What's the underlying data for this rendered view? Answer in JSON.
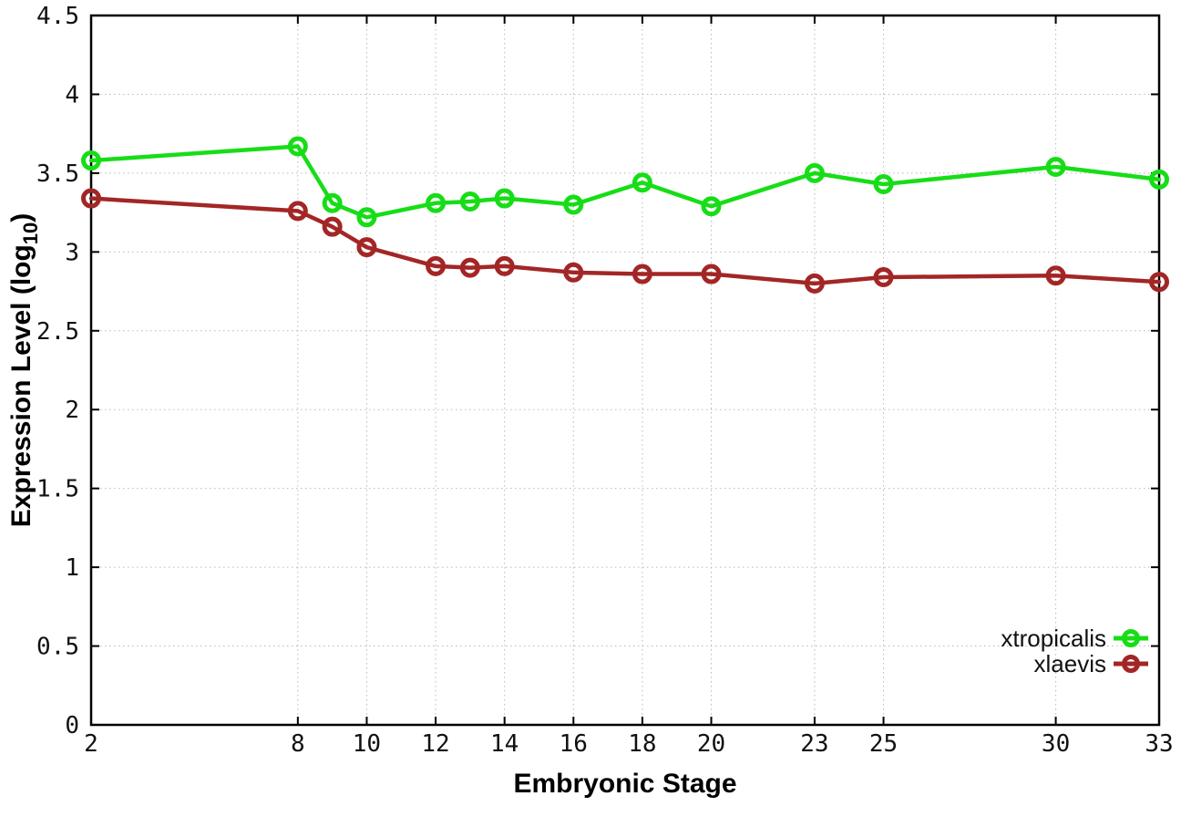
{
  "chart_data": {
    "type": "line",
    "title": "",
    "xlabel": "Embryonic Stage",
    "ylabel": {
      "pre": "Expression Level (log",
      "sub": "10",
      "post": ")"
    },
    "xlim": [
      2,
      33
    ],
    "ylim": [
      0,
      4.5
    ],
    "xticks": [
      2,
      8,
      10,
      12,
      14,
      16,
      18,
      20,
      23,
      25,
      30,
      33
    ],
    "xtick_labels": [
      "2",
      "8",
      "10",
      "12",
      "14",
      "16",
      "18",
      "20",
      "23",
      "25",
      "30",
      "33"
    ],
    "yticks": [
      0,
      0.5,
      1,
      1.5,
      2,
      2.5,
      3,
      3.5,
      4,
      4.5
    ],
    "ytick_labels": [
      "0",
      "0.5",
      "1",
      "1.5",
      "2",
      "2.5",
      "3",
      "3.5",
      "4",
      "4.5"
    ],
    "grid": true,
    "legend_position": "inside-bottom-right",
    "x": [
      2,
      8,
      9,
      10,
      12,
      13,
      14,
      16,
      18,
      20,
      23,
      25,
      30,
      33
    ],
    "series": [
      {
        "name": "xtropicalis",
        "color": "#17dd17",
        "values": [
          3.58,
          3.67,
          3.31,
          3.22,
          3.31,
          3.32,
          3.34,
          3.3,
          3.44,
          3.29,
          3.5,
          3.43,
          3.54,
          3.46
        ]
      },
      {
        "name": "xlaevis",
        "color": "#a32626",
        "values": [
          3.34,
          3.26,
          3.16,
          3.03,
          2.91,
          2.9,
          2.91,
          2.87,
          2.86,
          2.86,
          2.8,
          2.84,
          2.85,
          2.81
        ]
      }
    ]
  }
}
